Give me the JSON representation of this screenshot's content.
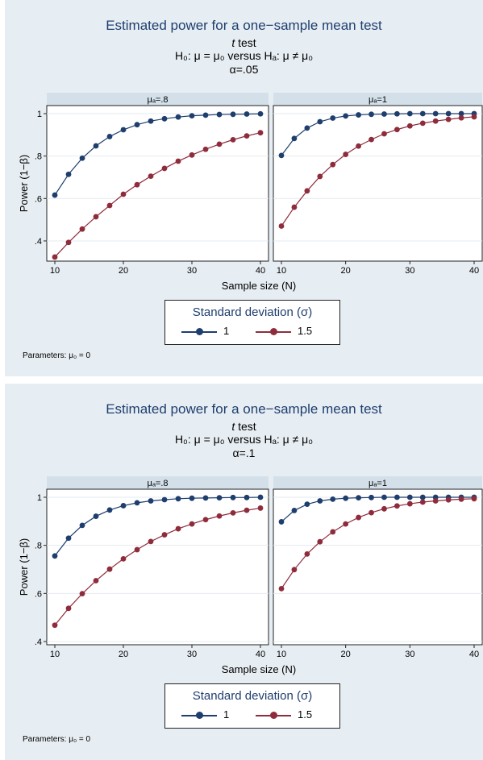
{
  "charts": [
    {
      "title": "Estimated power for a one−sample mean test",
      "subtitle_test_italic": "t",
      "subtitle_test_rest": " test",
      "hypothesis": "H₀: μ = μ₀  versus  Hₐ: μ ≠ μ₀",
      "alpha_label": "α=.05",
      "parameters_note": "Parameters: μ₀ = 0",
      "legend_title": "Standard deviation (σ)"
    },
    {
      "title": "Estimated power for a one−sample mean test",
      "subtitle_test_italic": "t",
      "subtitle_test_rest": " test",
      "hypothesis": "H₀: μ = μ₀  versus  Hₐ: μ ≠ μ₀",
      "alpha_label": "α=.1",
      "parameters_note": "Parameters: μ₀ = 0",
      "legend_title": "Standard deviation (σ)"
    }
  ],
  "chart_data": [
    {
      "type": "line",
      "title": "Estimated power for a one−sample mean test",
      "alpha": ".05",
      "xlabel": "Sample size (N)",
      "ylabel": "Power (1−β)",
      "x": [
        10,
        12,
        14,
        16,
        18,
        20,
        22,
        24,
        26,
        28,
        30,
        32,
        34,
        36,
        38,
        40
      ],
      "x_ticks": [
        10,
        20,
        30,
        40
      ],
      "y_ticks": [
        0.4,
        0.6,
        0.8,
        1
      ],
      "y_tick_labels": [
        ".4",
        ".6",
        ".8",
        "1"
      ],
      "xlim": [
        10,
        40
      ],
      "ylim": [
        0.32,
        1.0
      ],
      "grid": true,
      "legend_position": "bottom",
      "panels": [
        {
          "label": "μₐ=.8",
          "series": [
            {
              "name": "1",
              "color": "#1e3e6e",
              "values": [
                0.616,
                0.714,
                0.79,
                0.848,
                0.892,
                0.924,
                0.948,
                0.965,
                0.976,
                0.984,
                0.99,
                0.993,
                0.996,
                0.997,
                0.998,
                0.999
              ]
            },
            {
              "name": "1.5",
              "color": "#8f2c3c",
              "values": [
                0.324,
                0.393,
                0.456,
                0.514,
                0.567,
                0.62,
                0.665,
                0.705,
                0.742,
                0.776,
                0.805,
                0.832,
                0.856,
                0.877,
                0.895,
                0.91
              ]
            }
          ]
        },
        {
          "label": "μₐ=1",
          "series": [
            {
              "name": "1",
              "color": "#1e3e6e",
              "values": [
                0.803,
                0.883,
                0.932,
                0.962,
                0.979,
                0.989,
                0.994,
                0.997,
                0.998,
                0.999,
                1.0,
                1.0,
                1.0,
                1.0,
                1.0,
                1.0
              ]
            },
            {
              "name": "1.5",
              "color": "#8f2c3c",
              "values": [
                0.47,
                0.559,
                0.636,
                0.704,
                0.76,
                0.808,
                0.847,
                0.878,
                0.905,
                0.925,
                0.942,
                0.955,
                0.965,
                0.973,
                0.98,
                0.985
              ]
            }
          ]
        }
      ]
    },
    {
      "type": "line",
      "title": "Estimated power for a one−sample mean test",
      "alpha": ".1",
      "xlabel": "Sample size (N)",
      "ylabel": "Power (1−β)",
      "x": [
        10,
        12,
        14,
        16,
        18,
        20,
        22,
        24,
        26,
        28,
        30,
        32,
        34,
        36,
        38,
        40
      ],
      "x_ticks": [
        10,
        20,
        30,
        40
      ],
      "y_ticks": [
        0.4,
        0.6,
        0.8,
        1
      ],
      "y_tick_labels": [
        ".4",
        ".6",
        ".8",
        "1"
      ],
      "xlim": [
        10,
        40
      ],
      "ylim": [
        0.4,
        1.0
      ],
      "grid": true,
      "legend_position": "bottom",
      "panels": [
        {
          "label": "μₐ=.8",
          "series": [
            {
              "name": "1",
              "color": "#1e3e6e",
              "values": [
                0.756,
                0.83,
                0.883,
                0.921,
                0.947,
                0.965,
                0.977,
                0.985,
                0.99,
                0.994,
                0.996,
                0.997,
                0.998,
                0.999,
                0.999,
                1.0
              ]
            },
            {
              "name": "1.5",
              "color": "#8f2c3c",
              "values": [
                0.468,
                0.538,
                0.599,
                0.653,
                0.701,
                0.744,
                0.782,
                0.816,
                0.844,
                0.869,
                0.889,
                0.907,
                0.922,
                0.935,
                0.946,
                0.955
              ]
            }
          ]
        },
        {
          "label": "μₐ=1",
          "series": [
            {
              "name": "1",
              "color": "#1e3e6e",
              "values": [
                0.898,
                0.945,
                0.971,
                0.985,
                0.992,
                0.996,
                0.998,
                0.999,
                1.0,
                1.0,
                1.0,
                1.0,
                1.0,
                1.0,
                1.0,
                1.0
              ]
            },
            {
              "name": "1.5",
              "color": "#8f2c3c",
              "values": [
                0.62,
                0.699,
                0.764,
                0.815,
                0.856,
                0.889,
                0.916,
                0.936,
                0.952,
                0.964,
                0.973,
                0.98,
                0.985,
                0.989,
                0.992,
                0.994
              ]
            }
          ]
        }
      ]
    }
  ]
}
